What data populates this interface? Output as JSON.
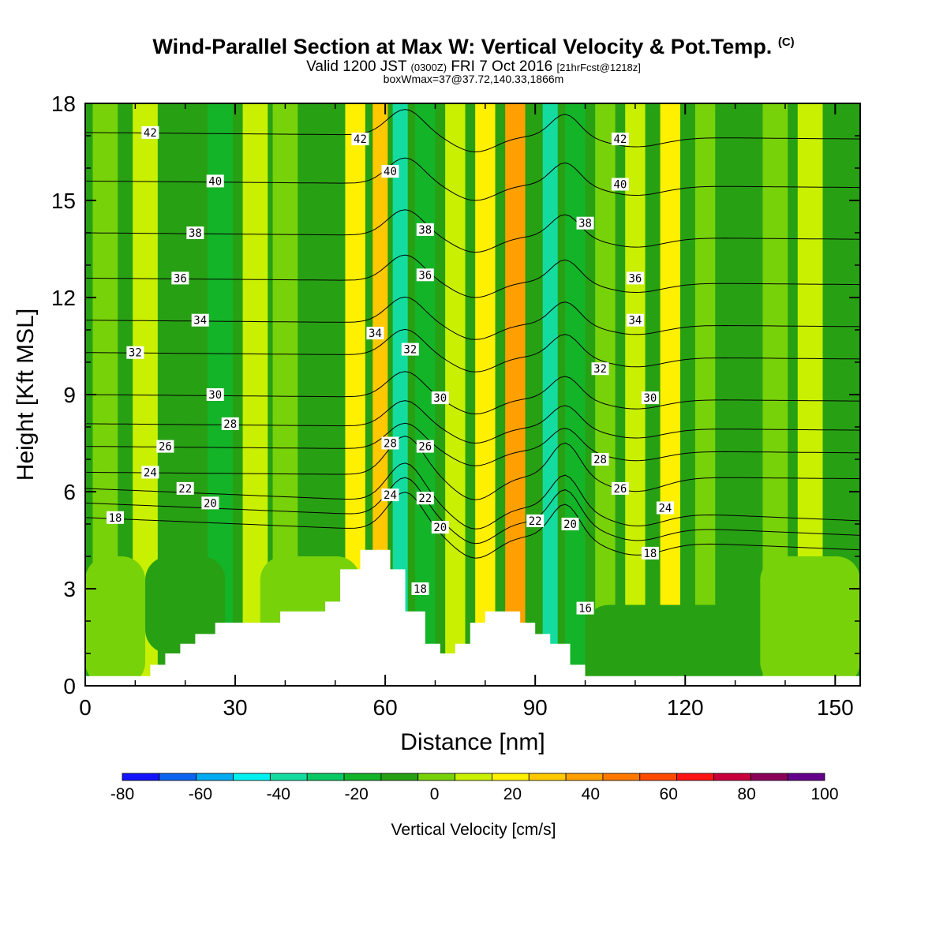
{
  "title": {
    "main": "Wind-Parallel Section at Max W: Vertical Velocity & Pot.Temp.",
    "copyright": "(C)",
    "valid_prefix": "Valid 1200 JST",
    "valid_utc": "(0300Z)",
    "valid_date": "FRI 7 Oct 2016",
    "forecast_info": "[21hrFcst@1218z]",
    "box_info": "boxWmax=37@37.72,140.33,1866m"
  },
  "chart_data": {
    "type": "heatmap",
    "xlabel": "Distance [nm]",
    "ylabel": "Height [Kft MSL]",
    "xlim": [
      0,
      155
    ],
    "ylim": [
      0,
      18
    ],
    "xticks": [
      "0",
      "30",
      "60",
      "90",
      "120",
      "150"
    ],
    "yticks": [
      "0",
      "3",
      "6",
      "9",
      "12",
      "15",
      "18"
    ],
    "colorbar": {
      "label": "Vertical Velocity [cm/s]",
      "ticks": [
        "-80",
        "-60",
        "-40",
        "-20",
        "0",
        "20",
        "40",
        "60",
        "80",
        "100"
      ],
      "bounds": [
        -80,
        -70,
        -60,
        -50,
        -40,
        -30,
        -20,
        -10,
        0,
        10,
        20,
        30,
        40,
        50,
        60,
        70,
        80,
        90,
        100
      ],
      "colors": [
        "#1414ff",
        "#0a64f0",
        "#00aaf0",
        "#00f0f0",
        "#14dca0",
        "#0ac864",
        "#14b428",
        "#28a014",
        "#78d20a",
        "#c8f000",
        "#fff000",
        "#ffc800",
        "#ffa000",
        "#ff7800",
        "#ff4b00",
        "#ff1414",
        "#c8003c",
        "#8c005a",
        "#64008c"
      ]
    },
    "vertical_velocity_bands": [
      {
        "x_center": 4,
        "width": 5,
        "w": 5
      },
      {
        "x_center": 12,
        "width": 5,
        "w": 10
      },
      {
        "x_center": 19,
        "width": 6,
        "w": -5
      },
      {
        "x_center": 27,
        "width": 5,
        "w": -15
      },
      {
        "x_center": 34,
        "width": 5,
        "w": 15
      },
      {
        "x_center": 40,
        "width": 5,
        "w": 5
      },
      {
        "x_center": 48,
        "width": 5,
        "w": -5
      },
      {
        "x_center": 54,
        "width": 4,
        "w": 20
      },
      {
        "x_center": 59,
        "width": 3,
        "w": 35
      },
      {
        "x_center": 63,
        "width": 3,
        "w": -40
      },
      {
        "x_center": 68,
        "width": 4,
        "w": -20
      },
      {
        "x_center": 74,
        "width": 4,
        "w": 10
      },
      {
        "x_center": 80,
        "width": 4,
        "w": 20
      },
      {
        "x_center": 86,
        "width": 4,
        "w": 40
      },
      {
        "x_center": 93,
        "width": 3,
        "w": -35
      },
      {
        "x_center": 98,
        "width": 4,
        "w": -20
      },
      {
        "x_center": 104,
        "width": 4,
        "w": 5
      },
      {
        "x_center": 110,
        "width": 4,
        "w": 15
      },
      {
        "x_center": 117,
        "width": 4,
        "w": 20
      },
      {
        "x_center": 124,
        "width": 4,
        "w": 5
      },
      {
        "x_center": 131,
        "width": 5,
        "w": -5
      },
      {
        "x_center": 138,
        "width": 5,
        "w": 5
      },
      {
        "x_center": 145,
        "width": 5,
        "w": 10
      },
      {
        "x_center": 152,
        "width": 4,
        "w": -5
      }
    ],
    "lower_level_w": [
      {
        "x_range": [
          0,
          12
        ],
        "y_range": [
          0,
          4
        ],
        "w": 5
      },
      {
        "x_range": [
          12,
          28
        ],
        "y_range": [
          1,
          4
        ],
        "w": -5
      },
      {
        "x_range": [
          35,
          55
        ],
        "y_range": [
          1,
          4
        ],
        "w": 5
      },
      {
        "x_range": [
          100,
          135
        ],
        "y_range": [
          0,
          2.5
        ],
        "w": -5
      },
      {
        "x_range": [
          135,
          155
        ],
        "y_range": [
          0,
          4
        ],
        "w": 5
      }
    ],
    "terrain": [
      {
        "x": 0,
        "h": 0.3
      },
      {
        "x": 13,
        "h": 0.3
      },
      {
        "x": 13,
        "h": 0.65
      },
      {
        "x": 16,
        "h": 0.65
      },
      {
        "x": 16,
        "h": 1.0
      },
      {
        "x": 19,
        "h": 1.0
      },
      {
        "x": 19,
        "h": 1.3
      },
      {
        "x": 22,
        "h": 1.3
      },
      {
        "x": 22,
        "h": 1.6
      },
      {
        "x": 26,
        "h": 1.6
      },
      {
        "x": 26,
        "h": 1.95
      },
      {
        "x": 39,
        "h": 1.95
      },
      {
        "x": 39,
        "h": 2.3
      },
      {
        "x": 48,
        "h": 2.3
      },
      {
        "x": 48,
        "h": 2.6
      },
      {
        "x": 51,
        "h": 2.6
      },
      {
        "x": 51,
        "h": 3.6
      },
      {
        "x": 55,
        "h": 3.6
      },
      {
        "x": 55,
        "h": 4.2
      },
      {
        "x": 61,
        "h": 4.2
      },
      {
        "x": 61,
        "h": 3.6
      },
      {
        "x": 64,
        "h": 3.6
      },
      {
        "x": 64,
        "h": 2.3
      },
      {
        "x": 68,
        "h": 2.3
      },
      {
        "x": 68,
        "h": 1.3
      },
      {
        "x": 71,
        "h": 1.3
      },
      {
        "x": 71,
        "h": 1.0
      },
      {
        "x": 74,
        "h": 1.0
      },
      {
        "x": 74,
        "h": 1.3
      },
      {
        "x": 77,
        "h": 1.3
      },
      {
        "x": 77,
        "h": 1.95
      },
      {
        "x": 80,
        "h": 1.95
      },
      {
        "x": 80,
        "h": 2.3
      },
      {
        "x": 87,
        "h": 2.3
      },
      {
        "x": 87,
        "h": 1.95
      },
      {
        "x": 90,
        "h": 1.95
      },
      {
        "x": 90,
        "h": 1.6
      },
      {
        "x": 93,
        "h": 1.6
      },
      {
        "x": 93,
        "h": 1.3
      },
      {
        "x": 97,
        "h": 1.3
      },
      {
        "x": 97,
        "h": 0.65
      },
      {
        "x": 100,
        "h": 0.65
      },
      {
        "x": 100,
        "h": 0.3
      },
      {
        "x": 155,
        "h": 0.3
      }
    ],
    "theta_contours": [
      {
        "value": 18,
        "label": "18",
        "y_left": 5.2
      },
      {
        "value": 20,
        "label": "20",
        "y_left": 5.65
      },
      {
        "value": 22,
        "label": "22",
        "y_left": 6.1
      },
      {
        "value": 24,
        "label": "24",
        "y_left": 6.6
      },
      {
        "value": 26,
        "label": "26",
        "y_left": 7.4
      },
      {
        "value": 28,
        "label": "28",
        "y_left": 8.1
      },
      {
        "value": 30,
        "label": "30",
        "y_left": 9.0
      },
      {
        "value": 32,
        "label": "32",
        "y_left": 10.3
      },
      {
        "value": 34,
        "label": "34",
        "y_left": 11.3
      },
      {
        "value": 36,
        "label": "36",
        "y_left": 12.6
      },
      {
        "value": 38,
        "label": "38",
        "y_left": 14.0
      },
      {
        "value": 40,
        "label": "40",
        "y_left": 15.6
      },
      {
        "value": 42,
        "label": "42",
        "y_left": 17.1
      }
    ],
    "contour_labels": [
      {
        "text": "18",
        "x": 6,
        "y": 5.2
      },
      {
        "text": "20",
        "x": 25,
        "y": 5.65
      },
      {
        "text": "22",
        "x": 20,
        "y": 6.1
      },
      {
        "text": "24",
        "x": 13,
        "y": 6.6
      },
      {
        "text": "26",
        "x": 16,
        "y": 7.4
      },
      {
        "text": "28",
        "x": 29,
        "y": 8.1
      },
      {
        "text": "30",
        "x": 26,
        "y": 9.0
      },
      {
        "text": "32",
        "x": 10,
        "y": 10.3
      },
      {
        "text": "34",
        "x": 23,
        "y": 11.3
      },
      {
        "text": "36",
        "x": 19,
        "y": 12.6
      },
      {
        "text": "38",
        "x": 22,
        "y": 14.0
      },
      {
        "text": "40",
        "x": 26,
        "y": 15.6
      },
      {
        "text": "42",
        "x": 13,
        "y": 17.1
      },
      {
        "text": "42",
        "x": 55,
        "y": 16.9
      },
      {
        "text": "40",
        "x": 61,
        "y": 15.9
      },
      {
        "text": "38",
        "x": 68,
        "y": 14.1
      },
      {
        "text": "36",
        "x": 68,
        "y": 12.7
      },
      {
        "text": "34",
        "x": 58,
        "y": 10.9
      },
      {
        "text": "32",
        "x": 65,
        "y": 10.4
      },
      {
        "text": "30",
        "x": 71,
        "y": 8.9
      },
      {
        "text": "28",
        "x": 61,
        "y": 7.5
      },
      {
        "text": "26",
        "x": 68,
        "y": 7.4
      },
      {
        "text": "24",
        "x": 61,
        "y": 5.9
      },
      {
        "text": "22",
        "x": 68,
        "y": 5.8
      },
      {
        "text": "20",
        "x": 71,
        "y": 4.9
      },
      {
        "text": "18",
        "x": 67,
        "y": 3.0
      },
      {
        "text": "22",
        "x": 90,
        "y": 5.1
      },
      {
        "text": "20",
        "x": 97,
        "y": 5.0
      },
      {
        "text": "16",
        "x": 100,
        "y": 2.4
      },
      {
        "text": "42",
        "x": 107,
        "y": 16.9
      },
      {
        "text": "40",
        "x": 107,
        "y": 15.5
      },
      {
        "text": "38",
        "x": 100,
        "y": 14.3
      },
      {
        "text": "36",
        "x": 110,
        "y": 12.6
      },
      {
        "text": "34",
        "x": 110,
        "y": 11.3
      },
      {
        "text": "32",
        "x": 103,
        "y": 9.8
      },
      {
        "text": "30",
        "x": 113,
        "y": 8.9
      },
      {
        "text": "28",
        "x": 103,
        "y": 7.0
      },
      {
        "text": "26",
        "x": 107,
        "y": 6.1
      },
      {
        "text": "24",
        "x": 116,
        "y": 5.5
      },
      {
        "text": "18",
        "x": 113,
        "y": 4.1
      }
    ]
  }
}
